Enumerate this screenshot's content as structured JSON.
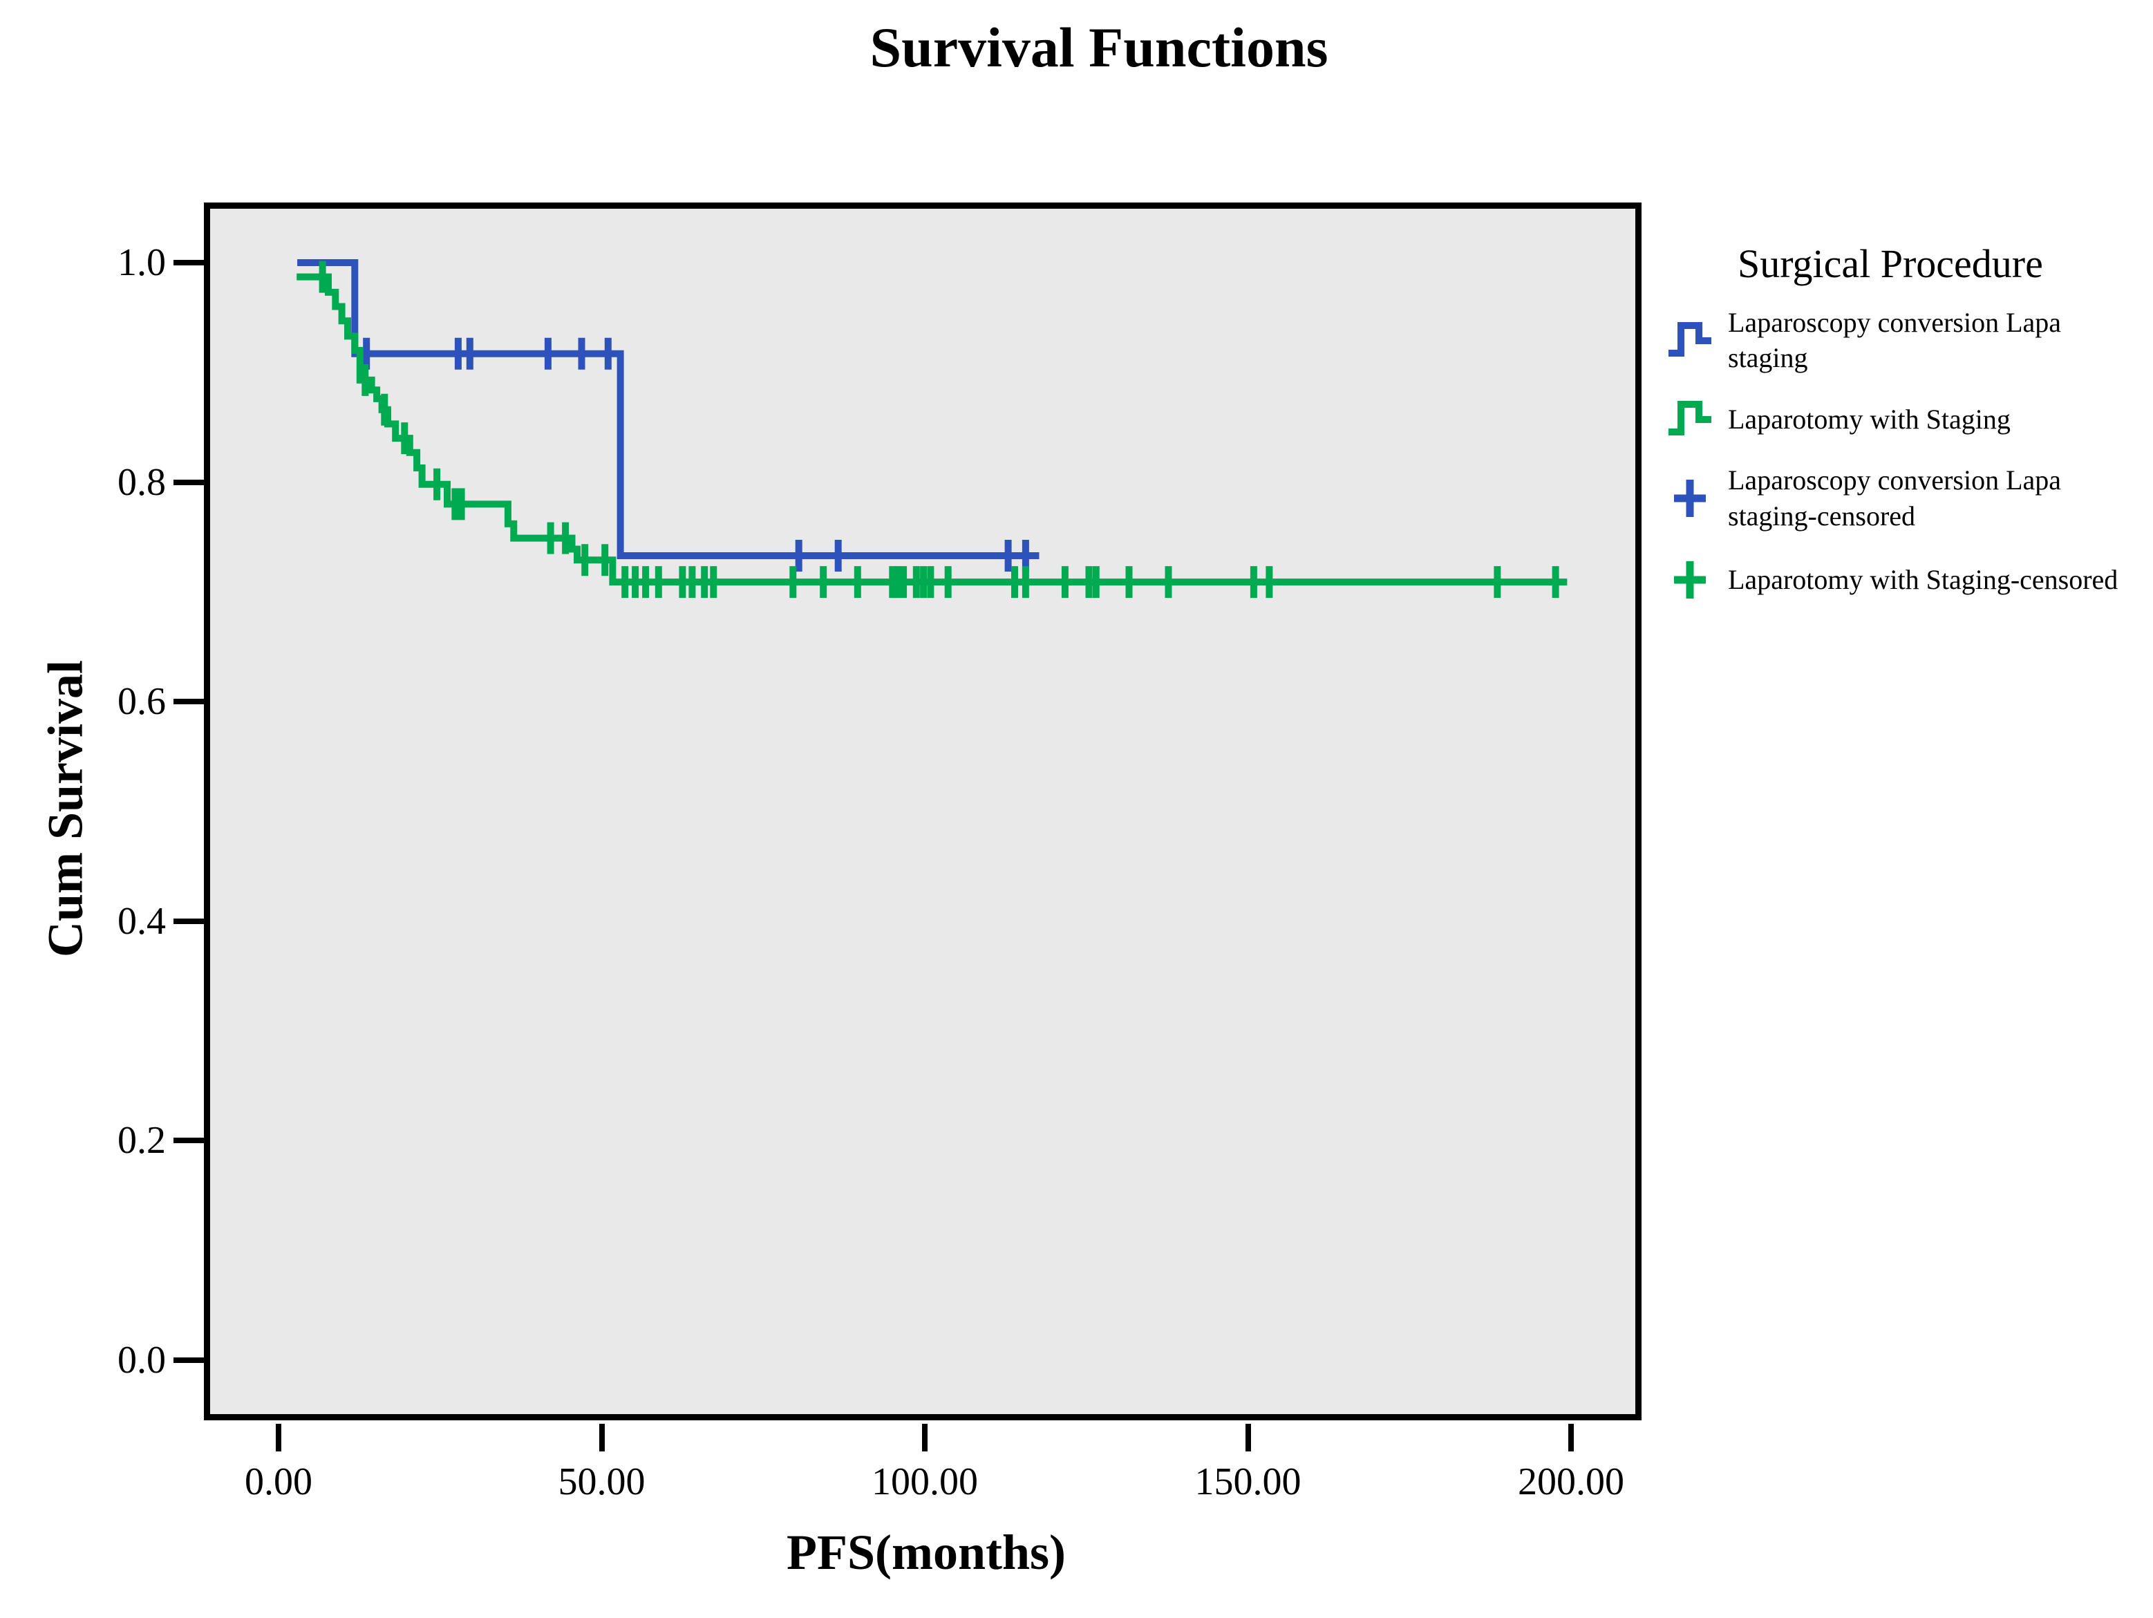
{
  "title": "Survival Functions",
  "legend": {
    "title": "Surgical Procedure",
    "items": [
      {
        "label": "Laparoscopy conversion Lapa staging",
        "icon": "step-line",
        "color": "#2e52bc"
      },
      {
        "label": "Laparotomy with Staging",
        "icon": "step-line",
        "color": "#00aa50"
      },
      {
        "label": "Laparoscopy conversion Lapa staging-censored",
        "icon": "plus",
        "color": "#2e52bc"
      },
      {
        "label": "Laparotomy with Staging-censored",
        "icon": "plus",
        "color": "#00aa50"
      }
    ]
  },
  "colors": {
    "plot_background": "#e9e9e9",
    "frame": "#000000",
    "series_blue": "#2e52bc",
    "series_green": "#00aa50"
  },
  "chart_data": {
    "type": "line",
    "subtype": "kaplan-meier-step",
    "title": "Survival Functions",
    "xlabel": "PFS(months)",
    "ylabel": "Cum Survival",
    "xlim": [
      -11.5,
      210.9
    ],
    "ylim": [
      -0.0535,
      1.053
    ],
    "x_ticks": [
      0,
      50,
      100,
      150,
      200
    ],
    "x_tick_labels": [
      "0.00",
      "50.00",
      "100.00",
      "150.00",
      "200.00"
    ],
    "y_ticks": [
      0.0,
      0.2,
      0.4,
      0.6,
      0.8,
      1.0
    ],
    "y_tick_labels": [
      "0.0",
      "0.2",
      "0.4",
      "0.6",
      "0.8",
      "1.0"
    ],
    "grid": false,
    "legend_position": "right",
    "series": [
      {
        "name": "Laparoscopy conversion Lapa staging",
        "color": "#2e52bc",
        "start": {
          "x": 2.9,
          "y": 1.0
        },
        "steps": [
          [
            11.8,
            0.917
          ],
          [
            52.9,
            0.733
          ]
        ],
        "end_x": 117.7,
        "censored": [
          [
            13.6,
            0.917
          ],
          [
            27.8,
            0.917
          ],
          [
            29.6,
            0.917
          ],
          [
            41.7,
            0.917
          ],
          [
            46.9,
            0.917
          ],
          [
            51.0,
            0.917
          ],
          [
            80.5,
            0.733
          ],
          [
            86.6,
            0.733
          ],
          [
            112.9,
            0.733
          ],
          [
            115.6,
            0.733
          ]
        ]
      },
      {
        "name": "Laparotomy with Staging",
        "color": "#00aa50",
        "start": {
          "x": 2.8,
          "y": 0.987
        },
        "steps": [
          [
            7.7,
            0.973
          ],
          [
            8.8,
            0.96
          ],
          [
            9.8,
            0.947
          ],
          [
            10.7,
            0.933
          ],
          [
            11.8,
            0.92
          ],
          [
            12.6,
            0.893
          ],
          [
            14.4,
            0.884
          ],
          [
            15.2,
            0.876
          ],
          [
            16.0,
            0.866
          ],
          [
            16.9,
            0.853
          ],
          [
            18.1,
            0.84
          ],
          [
            20.3,
            0.827
          ],
          [
            21.4,
            0.813
          ],
          [
            22.2,
            0.798
          ],
          [
            26.1,
            0.78
          ],
          [
            35.5,
            0.762
          ],
          [
            36.4,
            0.749
          ],
          [
            45.4,
            0.739
          ],
          [
            46.2,
            0.729
          ],
          [
            51.7,
            0.709
          ]
        ],
        "end_x": 199.4,
        "censored": [
          [
            6.8,
            0.987
          ],
          [
            13.4,
            0.893
          ],
          [
            16.4,
            0.866
          ],
          [
            19.5,
            0.84
          ],
          [
            24.5,
            0.798
          ],
          [
            27.3,
            0.78
          ],
          [
            28.3,
            0.78
          ],
          [
            42.1,
            0.749
          ],
          [
            44.4,
            0.749
          ],
          [
            47.4,
            0.729
          ],
          [
            50.5,
            0.729
          ],
          [
            53.6,
            0.709
          ],
          [
            55.2,
            0.709
          ],
          [
            56.8,
            0.709
          ],
          [
            58.8,
            0.709
          ],
          [
            62.5,
            0.709
          ],
          [
            64.0,
            0.709
          ],
          [
            65.9,
            0.709
          ],
          [
            67.3,
            0.709
          ],
          [
            79.6,
            0.709
          ],
          [
            84.3,
            0.709
          ],
          [
            89.6,
            0.709
          ],
          [
            95.0,
            0.709
          ],
          [
            95.8,
            0.709
          ],
          [
            96.7,
            0.709
          ],
          [
            98.7,
            0.709
          ],
          [
            99.8,
            0.709
          ],
          [
            100.9,
            0.709
          ],
          [
            103.6,
            0.709
          ],
          [
            113.9,
            0.709
          ],
          [
            115.6,
            0.709
          ],
          [
            121.7,
            0.709
          ],
          [
            125.4,
            0.709
          ],
          [
            126.5,
            0.709
          ],
          [
            131.6,
            0.709
          ],
          [
            137.7,
            0.709
          ],
          [
            150.9,
            0.709
          ],
          [
            153.3,
            0.709
          ],
          [
            188.6,
            0.709
          ],
          [
            197.6,
            0.709
          ]
        ]
      }
    ]
  }
}
